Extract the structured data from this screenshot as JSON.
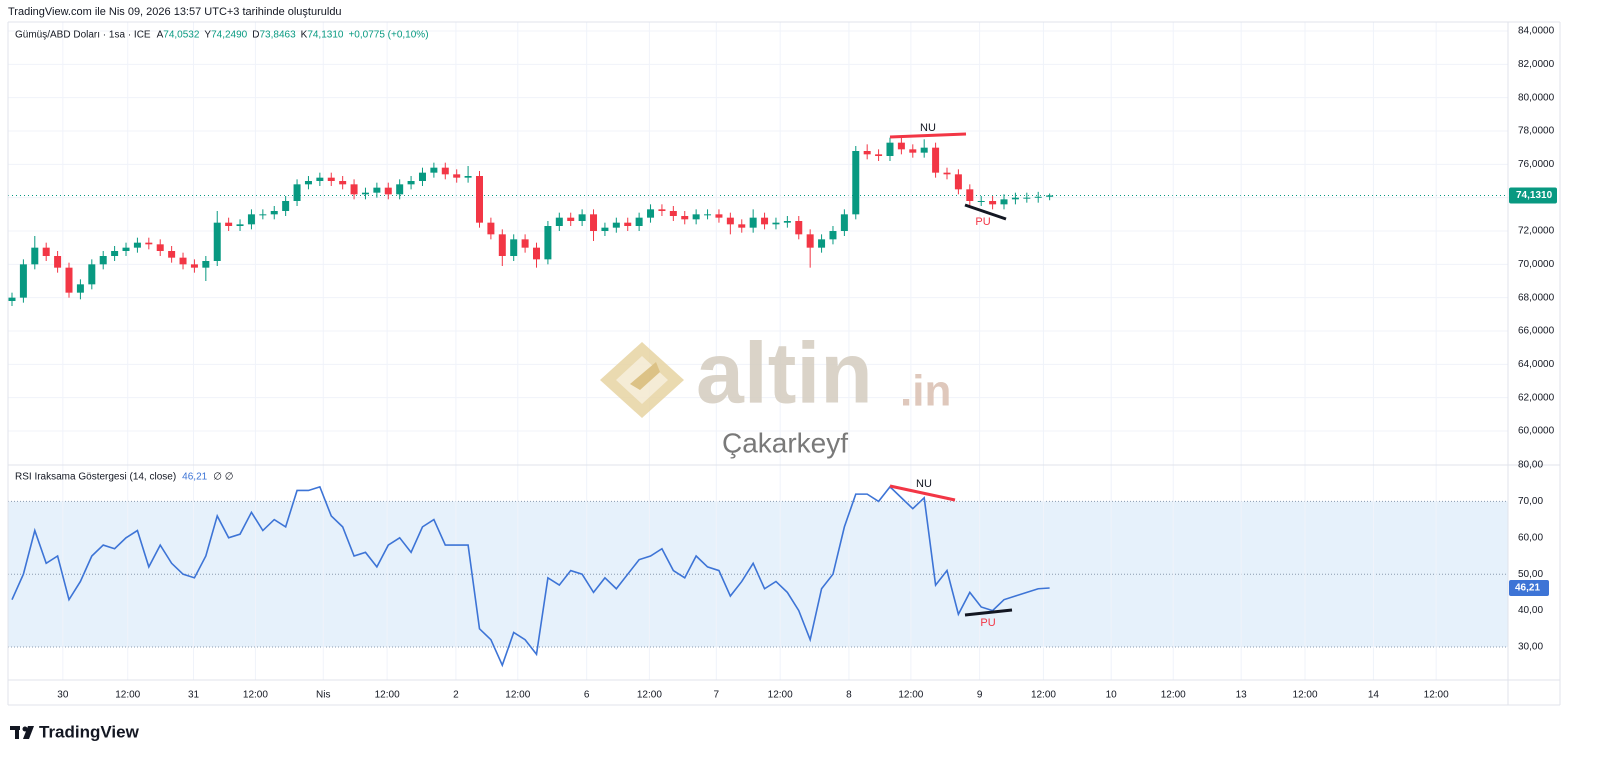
{
  "header": {
    "created": "TradingView.com ile Nis 09, 2026 13:57 UTC+3 tarihinde oluşturuldu",
    "symbol": "Gümüş/ABD Doları · 1sa · ICE",
    "ohlc_letters": [
      "A",
      "Y",
      "D",
      "K"
    ],
    "ohlc_values": [
      "74,0532",
      "74,2490",
      "73,8463",
      "74,1310"
    ],
    "change": "+0,0775 (+0,10%)"
  },
  "chart_data": [
    {
      "type": "candlestick",
      "x": [
        0,
        1,
        2,
        3,
        4,
        5,
        6,
        7,
        8,
        9,
        10,
        11,
        12,
        13,
        14,
        15,
        16,
        17,
        18,
        19,
        20,
        21,
        22,
        23,
        24,
        25,
        26,
        27,
        28,
        29,
        30,
        31,
        32,
        33,
        34,
        35,
        36,
        37,
        38,
        39,
        40,
        41,
        42,
        43,
        44,
        45,
        46,
        47,
        48,
        49,
        50,
        51,
        52,
        53,
        54,
        55,
        56,
        57,
        58,
        59,
        60,
        61,
        62,
        63,
        64,
        65,
        66,
        67,
        68,
        69,
        70,
        71,
        72,
        73,
        74,
        75,
        76,
        77,
        78,
        79,
        80,
        81,
        82,
        83,
        84,
        85,
        86,
        87,
        88,
        89,
        90,
        91
      ],
      "open": [
        67.8,
        68.0,
        70.0,
        71.0,
        70.5,
        69.8,
        68.3,
        68.8,
        70.0,
        70.5,
        70.8,
        71.0,
        71.3,
        71.2,
        70.8,
        70.4,
        70.0,
        69.8,
        70.2,
        72.5,
        72.3,
        72.4,
        73.0,
        73.0,
        73.2,
        73.8,
        74.8,
        75.0,
        75.2,
        75.0,
        74.8,
        74.2,
        74.3,
        74.6,
        74.2,
        74.8,
        75.0,
        75.5,
        75.8,
        75.4,
        75.2,
        75.3,
        72.5,
        71.8,
        70.5,
        71.5,
        71.0,
        70.3,
        72.3,
        72.8,
        72.6,
        73.0,
        72.0,
        72.2,
        72.5,
        72.3,
        72.8,
        73.3,
        73.2,
        72.9,
        72.7,
        73.0,
        73.0,
        72.8,
        72.4,
        72.2,
        72.8,
        72.4,
        72.5,
        72.6,
        71.8,
        71.0,
        71.5,
        72.0,
        73.0,
        76.8,
        76.6,
        76.5,
        77.3,
        76.9,
        76.7,
        77.0,
        75.5,
        75.4,
        74.5,
        73.8,
        73.8,
        73.6,
        73.9,
        74.0,
        74.0,
        74.0532
      ],
      "high": [
        68.3,
        70.3,
        71.7,
        71.3,
        70.8,
        70.1,
        69.1,
        70.3,
        70.8,
        71.1,
        71.3,
        71.6,
        71.6,
        71.5,
        71.1,
        70.7,
        70.3,
        70.5,
        73.2,
        72.8,
        72.7,
        73.3,
        73.3,
        73.5,
        74.1,
        75.1,
        75.3,
        75.5,
        75.5,
        75.3,
        75.1,
        74.6,
        74.9,
        74.9,
        75.1,
        75.3,
        75.8,
        76.1,
        76.1,
        75.7,
        75.9,
        75.6,
        72.8,
        72.1,
        71.8,
        71.8,
        71.3,
        72.6,
        73.1,
        73.1,
        73.3,
        73.3,
        72.5,
        72.8,
        72.8,
        73.1,
        73.6,
        73.6,
        73.5,
        73.2,
        73.3,
        73.3,
        73.3,
        73.1,
        72.7,
        73.3,
        73.1,
        72.8,
        72.9,
        72.9,
        72.1,
        71.8,
        72.3,
        73.3,
        77.1,
        77.2,
        76.9,
        77.6,
        77.6,
        77.2,
        77.5,
        77.3,
        75.8,
        75.7,
        74.8,
        74.1,
        74.1,
        74.2,
        74.3,
        74.3,
        74.35,
        74.249
      ],
      "low": [
        67.5,
        67.7,
        69.7,
        70.2,
        69.5,
        68.0,
        67.9,
        68.5,
        69.7,
        70.2,
        70.5,
        70.7,
        70.9,
        70.5,
        70.1,
        69.7,
        69.5,
        69.0,
        69.9,
        72.0,
        72.0,
        72.1,
        72.7,
        72.7,
        72.9,
        73.5,
        74.5,
        74.7,
        74.7,
        74.5,
        73.9,
        73.9,
        74.0,
        73.9,
        73.9,
        74.5,
        74.7,
        75.2,
        75.1,
        74.9,
        74.9,
        72.2,
        71.5,
        69.9,
        70.2,
        70.7,
        69.8,
        70.0,
        72.0,
        72.3,
        72.3,
        71.4,
        71.7,
        71.9,
        72.0,
        72.0,
        72.5,
        72.9,
        72.6,
        72.4,
        72.4,
        72.7,
        72.5,
        71.8,
        71.9,
        71.9,
        72.1,
        72.1,
        72.2,
        71.5,
        69.8,
        70.7,
        71.2,
        71.7,
        72.7,
        76.3,
        76.2,
        76.2,
        76.6,
        76.4,
        76.4,
        75.2,
        75.1,
        74.2,
        73.5,
        73.5,
        73.3,
        73.3,
        73.6,
        73.7,
        73.7,
        73.8463
      ],
      "close": [
        68.0,
        70.0,
        71.0,
        70.5,
        69.8,
        68.3,
        68.8,
        70.0,
        70.5,
        70.8,
        71.0,
        71.3,
        71.2,
        70.8,
        70.4,
        70.0,
        69.8,
        70.2,
        72.5,
        72.3,
        72.4,
        73.0,
        73.0,
        73.2,
        73.8,
        74.8,
        75.0,
        75.2,
        75.0,
        74.8,
        74.2,
        74.3,
        74.6,
        74.2,
        74.8,
        75.0,
        75.5,
        75.8,
        75.4,
        75.2,
        75.3,
        72.5,
        71.8,
        70.5,
        71.5,
        71.0,
        70.3,
        72.3,
        72.8,
        72.6,
        73.0,
        72.0,
        72.2,
        72.5,
        72.3,
        72.8,
        73.3,
        73.2,
        72.9,
        72.7,
        73.0,
        73.0,
        72.8,
        72.4,
        72.2,
        72.8,
        72.4,
        72.5,
        72.6,
        71.8,
        71.0,
        71.5,
        72.0,
        73.0,
        76.8,
        76.6,
        76.5,
        77.3,
        76.9,
        76.7,
        77.0,
        75.5,
        75.4,
        74.5,
        73.8,
        73.8,
        73.6,
        73.9,
        74.0,
        74.0,
        74.0532,
        74.131
      ],
      "up_color": "#089981",
      "down_color": "#f23645",
      "last_label": "74,1310",
      "xlim": [
        -0.35,
        131.2
      ],
      "ylim": [
        57.96,
        84.54
      ],
      "yticks": [
        {
          "value": 60,
          "label": "60,0000"
        },
        {
          "value": 62,
          "label": "62,0000"
        },
        {
          "value": 64,
          "label": "64,0000"
        },
        {
          "value": 66,
          "label": "66,0000"
        },
        {
          "value": 68,
          "label": "68,0000"
        },
        {
          "value": 70,
          "label": "70,0000"
        },
        {
          "value": 72,
          "label": "72,0000"
        },
        {
          "value": 74,
          "label": "74,0000"
        },
        {
          "value": 76,
          "label": "76,0000"
        },
        {
          "value": 78,
          "label": "78,0000"
        },
        {
          "value": 80,
          "label": "80,0000"
        },
        {
          "value": 82,
          "label": "82,0000"
        },
        {
          "value": 84,
          "label": "84,0000"
        }
      ],
      "grid": true,
      "annotations": [
        "NU",
        "PU"
      ]
    },
    {
      "type": "line",
      "x": [
        0,
        1,
        2,
        3,
        4,
        5,
        6,
        7,
        8,
        9,
        10,
        11,
        12,
        13,
        14,
        15,
        16,
        17,
        18,
        19,
        20,
        21,
        22,
        23,
        24,
        25,
        26,
        27,
        28,
        29,
        30,
        31,
        32,
        33,
        34,
        35,
        36,
        37,
        38,
        39,
        40,
        41,
        42,
        43,
        44,
        45,
        46,
        47,
        48,
        49,
        50,
        51,
        52,
        53,
        54,
        55,
        56,
        57,
        58,
        59,
        60,
        61,
        62,
        63,
        64,
        65,
        66,
        67,
        68,
        69,
        70,
        71,
        72,
        73,
        74,
        75,
        76,
        77,
        78,
        79,
        80,
        81,
        82,
        83,
        84,
        85,
        86,
        87,
        88,
        89,
        90,
        91
      ],
      "series": [
        {
          "name": "RSI Iraksama Göstergesi (14, close)",
          "color": "#3d74d6",
          "values": [
            43,
            50,
            62,
            53,
            55,
            43,
            48,
            55,
            58,
            57,
            60,
            62,
            52,
            58,
            53,
            50,
            49,
            55,
            66,
            60,
            61,
            67,
            62,
            65,
            63,
            73,
            73,
            74,
            66,
            63,
            55,
            56,
            52,
            58,
            60,
            56,
            63,
            65,
            58,
            58,
            58,
            35,
            32,
            25,
            34,
            32,
            28,
            49,
            47,
            51,
            50,
            45,
            49,
            46,
            50,
            54,
            55,
            57,
            51,
            49,
            55,
            52,
            51,
            44,
            48,
            53,
            46,
            48,
            45,
            40,
            32,
            46,
            50,
            63,
            72,
            72,
            70,
            74,
            71,
            68,
            71,
            47,
            51,
            39,
            45,
            41,
            40,
            43,
            44,
            45,
            46,
            46.21
          ],
          "last_label": "46,21"
        }
      ],
      "legend_extra": "∅ ∅",
      "band_color": "#e6f1fb",
      "levels": [
        30,
        50,
        70
      ],
      "xlim": [
        -0.35,
        131.2
      ],
      "ylim": [
        20.93,
        80
      ],
      "yticks": [
        {
          "value": 30,
          "label": "30,00"
        },
        {
          "value": 40,
          "label": "40,00"
        },
        {
          "value": 50,
          "label": "50,00"
        },
        {
          "value": 60,
          "label": "60,00"
        },
        {
          "value": 70,
          "label": "70,00"
        },
        {
          "value": 80,
          "label": "80,00"
        }
      ],
      "xticks": [
        {
          "value": 4.46,
          "label": "30"
        },
        {
          "value": 10.15,
          "label": "12:00"
        },
        {
          "value": 15.92,
          "label": "31"
        },
        {
          "value": 21.35,
          "label": "12:00"
        },
        {
          "value": 27.3,
          "label": "Nis"
        },
        {
          "value": 32.9,
          "label": "12:00"
        },
        {
          "value": 38.93,
          "label": "2"
        },
        {
          "value": 44.36,
          "label": "12:00"
        },
        {
          "value": 50.4,
          "label": "6"
        },
        {
          "value": 55.9,
          "label": "12:00"
        },
        {
          "value": 61.77,
          "label": "7"
        },
        {
          "value": 67.37,
          "label": "12:00"
        },
        {
          "value": 73.4,
          "label": "8"
        },
        {
          "value": 78.83,
          "label": "12:00"
        },
        {
          "value": 84.86,
          "label": "9"
        },
        {
          "value": 90.46,
          "label": "12:00"
        },
        {
          "value": 96.4,
          "label": "10"
        },
        {
          "value": 101.84,
          "label": "12:00"
        },
        {
          "value": 107.8,
          "label": "13"
        },
        {
          "value": 113.4,
          "label": "12:00"
        },
        {
          "value": 119.4,
          "label": "14"
        },
        {
          "value": 124.9,
          "label": "12:00"
        }
      ],
      "annotations": [
        "NU",
        "PU"
      ]
    }
  ],
  "watermark": {
    "brand": "altin",
    "domain": ".in",
    "author": "Çakarkeyf"
  },
  "footer": {
    "brand": "TradingView"
  }
}
